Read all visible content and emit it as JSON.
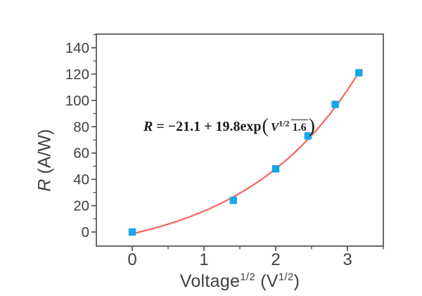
{
  "colors": {
    "axis": "#4f4f4f",
    "tick_text": "#414042",
    "curve": "#f4645f",
    "marker": "#16a7ea",
    "equation_text": "#1c1c1c",
    "background": "#ffffff"
  },
  "y_axis": {
    "title_var": "R",
    "title_rest": " (A/W)",
    "tick_labels": [
      "0",
      "20",
      "40",
      "60",
      "80",
      "100",
      "120",
      "140"
    ]
  },
  "x_axis": {
    "title_base": "Voltage",
    "title_sup1": "1/2",
    "title_mid": " (V",
    "title_sup2": "1/2",
    "title_end": ")",
    "tick_labels": [
      "0",
      "1",
      "2",
      "3"
    ]
  },
  "equation": {
    "lhs": "R",
    "equals_rhs": " = −21.1 + 19.8exp",
    "open_paren": "(",
    "frac_numerator_base": "V",
    "frac_numerator_sup": "1/2",
    "frac_denominator": "1.6",
    "close_paren": ")"
  },
  "chart_data": {
    "type": "scatter",
    "title": "",
    "xlabel": "Voltage^1/2 (V^1/2)",
    "ylabel": "R (A/W)",
    "x": [
      0,
      1.41,
      2,
      2.45,
      2.83,
      3.16
    ],
    "y": [
      0,
      24,
      48,
      73,
      97,
      121
    ],
    "xlim": [
      -0.5,
      3.5
    ],
    "ylim": [
      -10.7,
      150.4
    ],
    "x_major_ticks": [
      0,
      1,
      2,
      3
    ],
    "x_minor_ticks": [
      0.5,
      1.5,
      2.5,
      3.5
    ],
    "y_major_ticks": [
      0,
      20,
      40,
      60,
      80,
      100,
      120,
      140
    ],
    "y_minor_ticks": [
      10,
      30,
      50,
      70,
      90,
      110,
      130,
      150
    ],
    "grid": false,
    "legend": null,
    "marker": {
      "shape": "square",
      "size": 10.5
    },
    "fit": {
      "type": "exponential",
      "expression": "R = -21.1 + 19.8*exp(x/1.6)",
      "a": -21.1,
      "b": 19.8,
      "tau": 1.6,
      "x_start": 0,
      "x_end": 3.162
    }
  }
}
